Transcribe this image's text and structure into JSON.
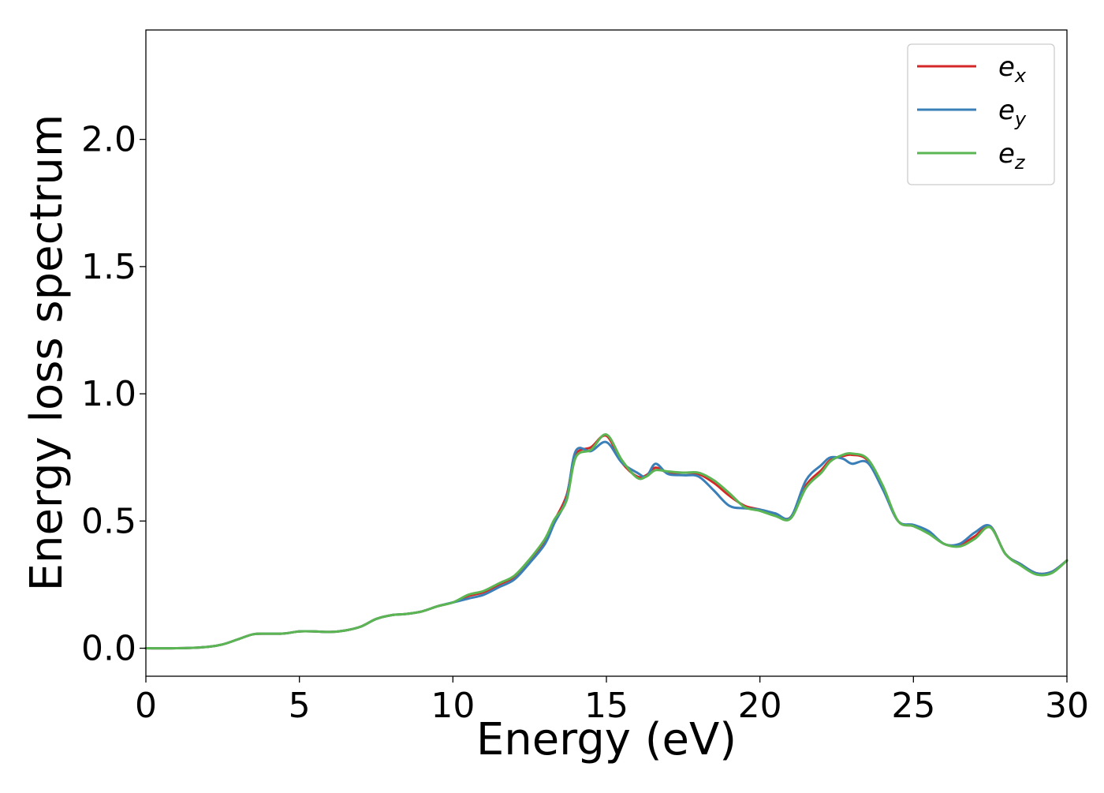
{
  "chart_data": {
    "type": "line",
    "title": "",
    "xlabel": "Energy (eV)",
    "ylabel": "Energy loss spectrum",
    "xlim": [
      0,
      30
    ],
    "ylim": [
      -0.11,
      2.43
    ],
    "xticks": [
      0,
      5,
      10,
      15,
      20,
      25,
      30
    ],
    "xtick_labels": [
      "0",
      "5",
      "10",
      "15",
      "20",
      "25",
      "30"
    ],
    "yticks": [
      0.0,
      0.5,
      1.0,
      1.5,
      2.0
    ],
    "ytick_labels": [
      "0.0",
      "0.5",
      "1.0",
      "1.5",
      "2.0"
    ],
    "grid": false,
    "legend_position": "top-right",
    "series": [
      {
        "name": "e_x",
        "legend_base": "e",
        "legend_sub": "x",
        "color": "#d62728",
        "x": [
          0,
          1,
          2,
          2.5,
          3,
          3.5,
          4,
          4.5,
          5,
          5.5,
          6,
          6.5,
          7,
          7.5,
          8,
          8.5,
          9,
          9.5,
          10,
          10.5,
          11,
          11.5,
          12,
          12.5,
          13,
          13.3,
          13.7,
          14,
          14.5,
          15,
          15.5,
          16,
          16.3,
          16.6,
          17,
          17.5,
          18,
          18.5,
          19,
          19.5,
          20,
          20.5,
          21,
          21.5,
          22,
          22.3,
          22.7,
          23,
          23.5,
          24,
          24.5,
          25,
          25.5,
          26,
          26.5,
          27,
          27.5,
          28,
          28.5,
          29,
          29.5,
          30
        ],
        "y": [
          0.0,
          0.0,
          0.005,
          0.015,
          0.035,
          0.055,
          0.057,
          0.058,
          0.066,
          0.066,
          0.064,
          0.07,
          0.085,
          0.115,
          0.13,
          0.135,
          0.145,
          0.165,
          0.18,
          0.205,
          0.22,
          0.25,
          0.28,
          0.345,
          0.42,
          0.5,
          0.6,
          0.76,
          0.79,
          0.835,
          0.73,
          0.675,
          0.68,
          0.71,
          0.69,
          0.69,
          0.685,
          0.65,
          0.6,
          0.56,
          0.545,
          0.525,
          0.515,
          0.64,
          0.7,
          0.74,
          0.755,
          0.76,
          0.74,
          0.63,
          0.5,
          0.48,
          0.455,
          0.41,
          0.405,
          0.44,
          0.48,
          0.37,
          0.33,
          0.295,
          0.3,
          0.345
        ]
      },
      {
        "name": "e_y",
        "legend_base": "e",
        "legend_sub": "y",
        "color": "#3a7fb8",
        "x": [
          0,
          1,
          2,
          2.5,
          3,
          3.5,
          4,
          4.5,
          5,
          5.5,
          6,
          6.5,
          7,
          7.5,
          8,
          8.5,
          9,
          9.5,
          10,
          10.5,
          11,
          11.5,
          12,
          12.5,
          13,
          13.3,
          13.7,
          14,
          14.5,
          15,
          15.5,
          16,
          16.3,
          16.6,
          17,
          17.5,
          18,
          18.5,
          19,
          19.5,
          20,
          20.5,
          21,
          21.5,
          22,
          22.3,
          22.7,
          23,
          23.5,
          24,
          24.5,
          25,
          25.5,
          26,
          26.5,
          27,
          27.5,
          28,
          28.5,
          29,
          29.5,
          30
        ],
        "y": [
          0.0,
          0.0,
          0.005,
          0.015,
          0.035,
          0.055,
          0.057,
          0.058,
          0.066,
          0.066,
          0.064,
          0.07,
          0.085,
          0.115,
          0.13,
          0.135,
          0.145,
          0.165,
          0.18,
          0.195,
          0.21,
          0.24,
          0.27,
          0.335,
          0.41,
          0.49,
          0.59,
          0.775,
          0.775,
          0.81,
          0.73,
          0.69,
          0.675,
          0.725,
          0.685,
          0.68,
          0.675,
          0.62,
          0.56,
          0.55,
          0.545,
          0.53,
          0.515,
          0.66,
          0.72,
          0.75,
          0.745,
          0.725,
          0.73,
          0.625,
          0.5,
          0.485,
          0.46,
          0.41,
          0.41,
          0.455,
          0.48,
          0.37,
          0.33,
          0.295,
          0.3,
          0.345
        ]
      },
      {
        "name": "e_z",
        "legend_base": "e",
        "legend_sub": "z",
        "color": "#5ab552",
        "x": [
          0,
          1,
          2,
          2.5,
          3,
          3.5,
          4,
          4.5,
          5,
          5.5,
          6,
          6.5,
          7,
          7.5,
          8,
          8.5,
          9,
          9.5,
          10,
          10.5,
          11,
          11.5,
          12,
          12.5,
          13,
          13.3,
          13.7,
          14,
          14.5,
          15,
          15.5,
          16,
          16.3,
          16.6,
          17,
          17.5,
          18,
          18.5,
          19,
          19.5,
          20,
          20.5,
          21,
          21.5,
          22,
          22.3,
          22.7,
          23,
          23.5,
          24,
          24.5,
          25,
          25.5,
          26,
          26.5,
          27,
          27.5,
          28,
          28.5,
          29,
          29.5,
          30
        ],
        "y": [
          0.0,
          0.0,
          0.005,
          0.015,
          0.035,
          0.055,
          0.057,
          0.058,
          0.066,
          0.066,
          0.064,
          0.07,
          0.085,
          0.115,
          0.13,
          0.135,
          0.145,
          0.165,
          0.18,
          0.21,
          0.225,
          0.255,
          0.285,
          0.35,
          0.43,
          0.505,
          0.58,
          0.75,
          0.78,
          0.84,
          0.74,
          0.67,
          0.675,
          0.7,
          0.695,
          0.69,
          0.69,
          0.66,
          0.61,
          0.555,
          0.54,
          0.52,
          0.51,
          0.63,
          0.69,
          0.735,
          0.76,
          0.765,
          0.745,
          0.64,
          0.5,
          0.48,
          0.45,
          0.41,
          0.4,
          0.43,
          0.475,
          0.37,
          0.325,
          0.29,
          0.295,
          0.345
        ]
      }
    ]
  }
}
